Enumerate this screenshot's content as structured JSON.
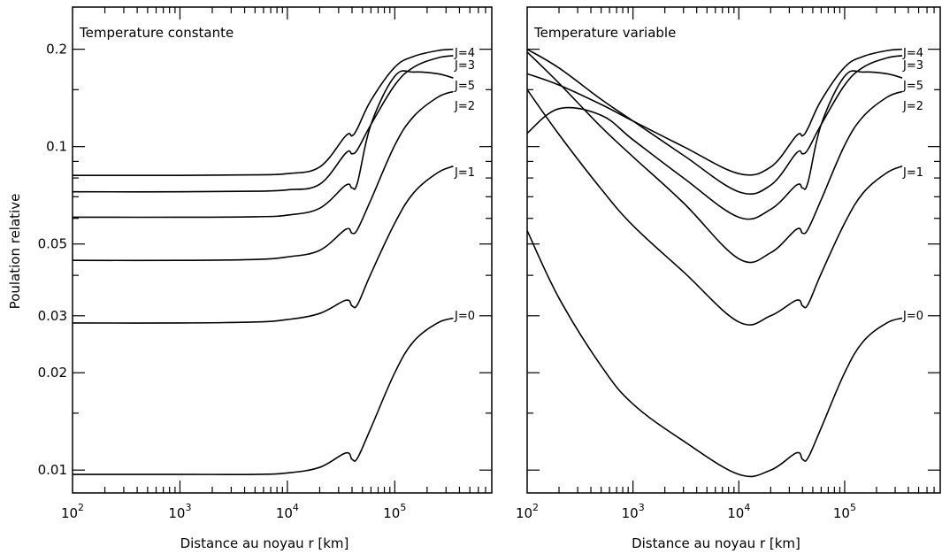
{
  "figure": {
    "ylabel": "Poulation relative",
    "xlabel": "Distance au noyau r [km]"
  },
  "chart_data": [
    {
      "type": "line",
      "title": "Temperature constante",
      "xlabel": "Distance au noyau r [km]",
      "ylabel": "Poulation relative",
      "xscale": "log",
      "yscale": "log",
      "xlim": [
        100,
        800000
      ],
      "ylim": [
        0.0085,
        0.27
      ],
      "xticks": [
        {
          "value": 100,
          "base": "10",
          "exp": "2"
        },
        {
          "value": 1000,
          "base": "10",
          "exp": "3"
        },
        {
          "value": 10000,
          "base": "10",
          "exp": "4"
        },
        {
          "value": 100000,
          "base": "10",
          "exp": "5"
        }
      ],
      "yticks": [
        {
          "value": 0.01,
          "label": "0.01"
        },
        {
          "value": 0.02,
          "label": "0.02"
        },
        {
          "value": 0.03,
          "label": "0.03"
        },
        {
          "value": 0.05,
          "label": "0.05"
        },
        {
          "value": 0.1,
          "label": "0.1"
        },
        {
          "value": 0.2,
          "label": "0.2"
        }
      ],
      "series": [
        {
          "name": "J=0",
          "x": [
            100,
            1000,
            5000,
            10000,
            20000,
            35000,
            40000,
            45000,
            60000,
            100000,
            150000,
            250000,
            350000
          ],
          "y": [
            0.0097,
            0.0097,
            0.0097,
            0.0098,
            0.0102,
            0.0113,
            0.0108,
            0.0109,
            0.0135,
            0.02,
            0.025,
            0.0285,
            0.0295
          ]
        },
        {
          "name": "J=1",
          "x": [
            100,
            1000,
            5000,
            10000,
            20000,
            35000,
            40000,
            45000,
            60000,
            100000,
            150000,
            250000,
            350000
          ],
          "y": [
            0.0285,
            0.0285,
            0.0287,
            0.0292,
            0.0305,
            0.0335,
            0.0322,
            0.0325,
            0.0405,
            0.058,
            0.072,
            0.083,
            0.087
          ]
        },
        {
          "name": "J=2",
          "x": [
            100,
            1000,
            5000,
            10000,
            20000,
            35000,
            40000,
            45000,
            60000,
            100000,
            150000,
            250000,
            350000
          ],
          "y": [
            0.0445,
            0.0445,
            0.0448,
            0.0456,
            0.0478,
            0.0555,
            0.054,
            0.0555,
            0.0685,
            0.101,
            0.124,
            0.142,
            0.148
          ]
        },
        {
          "name": "J=3",
          "x": [
            100,
            1000,
            5000,
            10000,
            20000,
            35000,
            40000,
            45000,
            60000,
            100000,
            150000,
            250000,
            350000
          ],
          "y": [
            0.0725,
            0.0725,
            0.0728,
            0.0735,
            0.0765,
            0.0955,
            0.095,
            0.098,
            0.117,
            0.155,
            0.176,
            0.188,
            0.191
          ]
        },
        {
          "name": "J=4",
          "x": [
            100,
            1000,
            5000,
            10000,
            20000,
            35000,
            40000,
            45000,
            60000,
            100000,
            150000,
            250000,
            350000
          ],
          "y": [
            0.0815,
            0.0815,
            0.0818,
            0.0825,
            0.0865,
            0.108,
            0.108,
            0.114,
            0.139,
            0.176,
            0.19,
            0.198,
            0.2
          ]
        },
        {
          "name": "J=5",
          "x": [
            100,
            1000,
            5000,
            10000,
            20000,
            35000,
            40000,
            45000,
            60000,
            100000,
            150000,
            250000,
            350000
          ],
          "y": [
            0.0605,
            0.0605,
            0.0607,
            0.0614,
            0.0645,
            0.076,
            0.0745,
            0.0775,
            0.117,
            0.165,
            0.17,
            0.168,
            0.163
          ]
        }
      ]
    },
    {
      "type": "line",
      "title": "Temperature variable",
      "xlabel": "Distance au noyau r [km]",
      "ylabel": "",
      "xscale": "log",
      "yscale": "log",
      "xlim": [
        100,
        800000
      ],
      "ylim": [
        0.0085,
        0.27
      ],
      "xticks": [
        {
          "value": 100,
          "base": "10",
          "exp": "2"
        },
        {
          "value": 1000,
          "base": "10",
          "exp": "3"
        },
        {
          "value": 10000,
          "base": "10",
          "exp": "4"
        },
        {
          "value": 100000,
          "base": "10",
          "exp": "5"
        }
      ],
      "series": [
        {
          "name": "J=0",
          "x": [
            100,
            200,
            500,
            1000,
            3000,
            10000,
            20000,
            35000,
            40000,
            45000,
            60000,
            100000,
            150000,
            250000,
            350000
          ],
          "y": [
            0.055,
            0.034,
            0.021,
            0.016,
            0.0123,
            0.0097,
            0.01,
            0.0113,
            0.0108,
            0.0109,
            0.0135,
            0.02,
            0.025,
            0.0285,
            0.0295
          ]
        },
        {
          "name": "J=1",
          "x": [
            100,
            200,
            500,
            1000,
            3000,
            10000,
            20000,
            35000,
            40000,
            45000,
            60000,
            100000,
            150000,
            250000,
            350000
          ],
          "y": [
            0.15,
            0.109,
            0.074,
            0.057,
            0.041,
            0.0287,
            0.03,
            0.0335,
            0.0322,
            0.0325,
            0.0405,
            0.058,
            0.072,
            0.083,
            0.087
          ]
        },
        {
          "name": "J=2",
          "x": [
            100,
            200,
            500,
            1000,
            3000,
            10000,
            20000,
            35000,
            40000,
            45000,
            60000,
            100000,
            150000,
            250000,
            350000
          ],
          "y": [
            0.196,
            0.157,
            0.115,
            0.093,
            0.067,
            0.045,
            0.047,
            0.0555,
            0.054,
            0.0555,
            0.0685,
            0.101,
            0.124,
            0.142,
            0.148
          ]
        },
        {
          "name": "J=3",
          "x": [
            100,
            200,
            500,
            1000,
            3000,
            10000,
            20000,
            35000,
            40000,
            45000,
            60000,
            100000,
            150000,
            250000,
            350000
          ],
          "y": [
            0.2,
            0.175,
            0.14,
            0.12,
            0.094,
            0.0725,
            0.076,
            0.0955,
            0.095,
            0.098,
            0.117,
            0.155,
            0.176,
            0.188,
            0.191
          ]
        },
        {
          "name": "J=4",
          "x": [
            100,
            200,
            500,
            1000,
            3000,
            10000,
            20000,
            35000,
            40000,
            45000,
            60000,
            100000,
            150000,
            250000,
            350000
          ],
          "y": [
            0.168,
            0.155,
            0.135,
            0.12,
            0.1,
            0.0825,
            0.0865,
            0.108,
            0.108,
            0.114,
            0.139,
            0.176,
            0.19,
            0.198,
            0.2
          ]
        },
        {
          "name": "J=5",
          "x": [
            100,
            200,
            500,
            1000,
            3000,
            10000,
            20000,
            35000,
            40000,
            45000,
            60000,
            100000,
            150000,
            250000,
            350000
          ],
          "y": [
            0.11,
            0.131,
            0.125,
            0.105,
            0.08,
            0.0605,
            0.064,
            0.076,
            0.0745,
            0.0775,
            0.117,
            0.165,
            0.17,
            0.168,
            0.163
          ]
        }
      ]
    }
  ]
}
